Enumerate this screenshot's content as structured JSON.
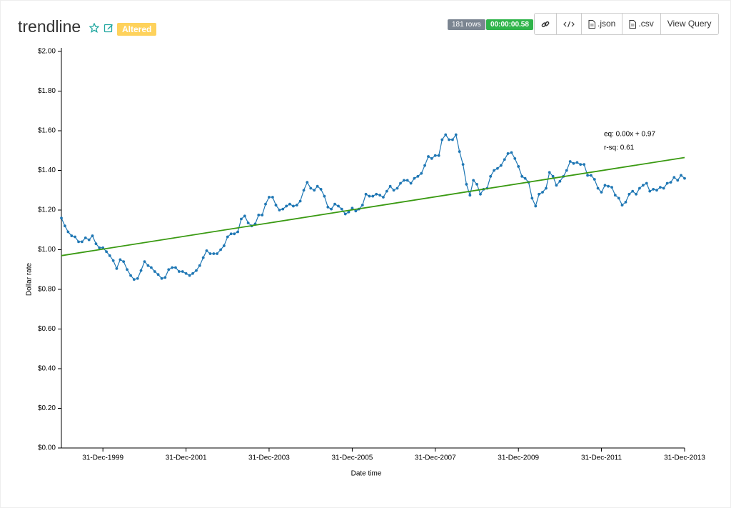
{
  "header": {
    "title": "trendline",
    "badge": "Altered",
    "row_count": "181 rows",
    "timer": "00:00:00.58",
    "buttons": [
      ".json",
      ".csv",
      "View Query"
    ]
  },
  "chart_data": {
    "type": "line",
    "x_label": "Date time",
    "y_label": "Dollar rate",
    "annotations": [
      "eq: 0.00x + 0.97",
      "r-sq: 0.61"
    ],
    "x": [
      "1998-12-31",
      "1999-01-31",
      "1999-02-28",
      "1999-03-31",
      "1999-04-30",
      "1999-05-31",
      "1999-06-30",
      "1999-07-31",
      "1999-08-31",
      "1999-09-30",
      "1999-10-31",
      "1999-11-30",
      "1999-12-31",
      "2000-01-31",
      "2000-02-29",
      "2000-03-31",
      "2000-04-30",
      "2000-05-31",
      "2000-06-30",
      "2000-07-31",
      "2000-08-31",
      "2000-09-30",
      "2000-10-31",
      "2000-11-30",
      "2000-12-31",
      "2001-01-31",
      "2001-02-28",
      "2001-03-31",
      "2001-04-30",
      "2001-05-31",
      "2001-06-30",
      "2001-07-31",
      "2001-08-31",
      "2001-09-30",
      "2001-10-31",
      "2001-11-30",
      "2001-12-31",
      "2002-01-31",
      "2002-02-28",
      "2002-03-31",
      "2002-04-30",
      "2002-05-31",
      "2002-06-30",
      "2002-07-31",
      "2002-08-31",
      "2002-09-30",
      "2002-10-31",
      "2002-11-30",
      "2002-12-31",
      "2003-01-31",
      "2003-02-28",
      "2003-03-31",
      "2003-04-30",
      "2003-05-31",
      "2003-06-30",
      "2003-07-31",
      "2003-08-31",
      "2003-09-30",
      "2003-10-31",
      "2003-11-30",
      "2003-12-31",
      "2004-01-31",
      "2004-02-29",
      "2004-03-31",
      "2004-04-30",
      "2004-05-31",
      "2004-06-30",
      "2004-07-31",
      "2004-08-31",
      "2004-09-30",
      "2004-10-31",
      "2004-11-30",
      "2004-12-31",
      "2005-01-31",
      "2005-02-28",
      "2005-03-31",
      "2005-04-30",
      "2005-05-31",
      "2005-06-30",
      "2005-07-31",
      "2005-08-31",
      "2005-09-30",
      "2005-10-31",
      "2005-11-30",
      "2005-12-31",
      "2006-01-31",
      "2006-02-28",
      "2006-03-31",
      "2006-04-30",
      "2006-05-31",
      "2006-06-30",
      "2006-07-31",
      "2006-08-31",
      "2006-09-30",
      "2006-10-31",
      "2006-11-30",
      "2006-12-31",
      "2007-01-31",
      "2007-02-28",
      "2007-03-31",
      "2007-04-30",
      "2007-05-31",
      "2007-06-30",
      "2007-07-31",
      "2007-08-31",
      "2007-09-30",
      "2007-10-31",
      "2007-11-30",
      "2007-12-31",
      "2008-01-31",
      "2008-02-29",
      "2008-03-31",
      "2008-04-30",
      "2008-05-31",
      "2008-06-30",
      "2008-07-31",
      "2008-08-31",
      "2008-09-30",
      "2008-10-31",
      "2008-11-30",
      "2008-12-31",
      "2009-01-31",
      "2009-02-28",
      "2009-03-31",
      "2009-04-30",
      "2009-05-31",
      "2009-06-30",
      "2009-07-31",
      "2009-08-31",
      "2009-09-30",
      "2009-10-31",
      "2009-11-30",
      "2009-12-31",
      "2010-01-31",
      "2010-02-28",
      "2010-03-31",
      "2010-04-30",
      "2010-05-31",
      "2010-06-30",
      "2010-07-31",
      "2010-08-31",
      "2010-09-30",
      "2010-10-31",
      "2010-11-30",
      "2010-12-31",
      "2011-01-31",
      "2011-02-28",
      "2011-03-31",
      "2011-04-30",
      "2011-05-31",
      "2011-06-30",
      "2011-07-31",
      "2011-08-31",
      "2011-09-30",
      "2011-10-31",
      "2011-11-30",
      "2011-12-31",
      "2012-01-31",
      "2012-02-29",
      "2012-03-31",
      "2012-04-30",
      "2012-05-31",
      "2012-06-30",
      "2012-07-31",
      "2012-08-31",
      "2012-09-30",
      "2012-10-31",
      "2012-11-30",
      "2012-12-31",
      "2013-01-31",
      "2013-02-28",
      "2013-03-31",
      "2013-04-30",
      "2013-05-31",
      "2013-06-30",
      "2013-07-31",
      "2013-08-31",
      "2013-09-30",
      "2013-10-31",
      "2013-11-30",
      "2013-12-31"
    ],
    "series": [
      {
        "color": "#1f77b4",
        "values": [
          1.16,
          1.12,
          1.09,
          1.07,
          1.065,
          1.04,
          1.04,
          1.06,
          1.05,
          1.07,
          1.03,
          1.01,
          1.01,
          0.99,
          0.97,
          0.945,
          0.905,
          0.95,
          0.94,
          0.9,
          0.87,
          0.85,
          0.855,
          0.895,
          0.94,
          0.92,
          0.91,
          0.89,
          0.875,
          0.855,
          0.86,
          0.9,
          0.91,
          0.91,
          0.89,
          0.89,
          0.88,
          0.87,
          0.88,
          0.895,
          0.92,
          0.96,
          0.995,
          0.98,
          0.98,
          0.98,
          1.0,
          1.02,
          1.065,
          1.08,
          1.08,
          1.09,
          1.155,
          1.17,
          1.135,
          1.12,
          1.13,
          1.175,
          1.175,
          1.23,
          1.265,
          1.265,
          1.225,
          1.2,
          1.205,
          1.22,
          1.23,
          1.22,
          1.225,
          1.245,
          1.3,
          1.34,
          1.31,
          1.3,
          1.32,
          1.305,
          1.27,
          1.215,
          1.205,
          1.23,
          1.22,
          1.205,
          1.18,
          1.19,
          1.21,
          1.195,
          1.205,
          1.225,
          1.28,
          1.27,
          1.27,
          1.28,
          1.275,
          1.265,
          1.295,
          1.32,
          1.3,
          1.31,
          1.335,
          1.35,
          1.35,
          1.335,
          1.36,
          1.37,
          1.385,
          1.425,
          1.47,
          1.46,
          1.475,
          1.475,
          1.555,
          1.58,
          1.555,
          1.555,
          1.58,
          1.495,
          1.43,
          1.33,
          1.275,
          1.35,
          1.33,
          1.28,
          1.305,
          1.31,
          1.37,
          1.4,
          1.41,
          1.425,
          1.455,
          1.485,
          1.49,
          1.46,
          1.42,
          1.37,
          1.36,
          1.34,
          1.26,
          1.22,
          1.28,
          1.29,
          1.31,
          1.39,
          1.37,
          1.325,
          1.345,
          1.37,
          1.4,
          1.445,
          1.435,
          1.44,
          1.43,
          1.43,
          1.375,
          1.375,
          1.355,
          1.31,
          1.29,
          1.325,
          1.32,
          1.315,
          1.275,
          1.26,
          1.225,
          1.24,
          1.28,
          1.295,
          1.28,
          1.31,
          1.325,
          1.335,
          1.295,
          1.305,
          1.3,
          1.315,
          1.31,
          1.335,
          1.34,
          1.365,
          1.35,
          1.375,
          1.36
        ]
      }
    ],
    "trendline": {
      "color": "#3a9a12",
      "x": [
        "1998-12-31",
        "2013-12-31"
      ],
      "values": [
        0.97,
        1.465
      ]
    },
    "xlim": [
      "1998-12-31",
      "2013-12-31"
    ],
    "xticks": [
      {
        "value": "1999-12-31",
        "label": "31-Dec-1999"
      },
      {
        "value": "2001-12-31",
        "label": "31-Dec-2001"
      },
      {
        "value": "2003-12-31",
        "label": "31-Dec-2003"
      },
      {
        "value": "2005-12-31",
        "label": "31-Dec-2005"
      },
      {
        "value": "2007-12-31",
        "label": "31-Dec-2007"
      },
      {
        "value": "2009-12-31",
        "label": "31-Dec-2009"
      },
      {
        "value": "2011-12-31",
        "label": "31-Dec-2011"
      },
      {
        "value": "2013-12-31",
        "label": "31-Dec-2013"
      }
    ],
    "ylim": [
      0,
      2
    ],
    "yticks": [
      {
        "value": 0,
        "label": "$0.00"
      },
      {
        "value": 0.2,
        "label": "$0.20"
      },
      {
        "value": 0.4,
        "label": "$0.40"
      },
      {
        "value": 0.6,
        "label": "$0.60"
      },
      {
        "value": 0.8,
        "label": "$0.80"
      },
      {
        "value": 1,
        "label": "$1.00"
      },
      {
        "value": 1.2,
        "label": "$1.20"
      },
      {
        "value": 1.4,
        "label": "$1.40"
      },
      {
        "value": 1.6,
        "label": "$1.60"
      },
      {
        "value": 1.8,
        "label": "$1.80"
      },
      {
        "value": 2,
        "label": "$2.00"
      }
    ],
    "grid": false
  }
}
